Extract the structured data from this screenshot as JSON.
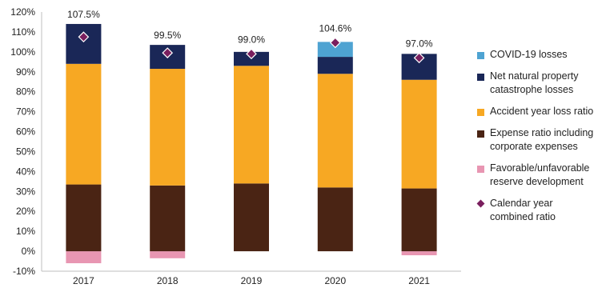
{
  "chart_data": {
    "type": "bar",
    "stacked": true,
    "categories": [
      "2017",
      "2018",
      "2019",
      "2020",
      "2021"
    ],
    "series": [
      {
        "name": "Favorable/unfavorable\nreserve development",
        "color": "#e896b2",
        "values": [
          -6,
          -3.5,
          0,
          0,
          -2
        ]
      },
      {
        "name": "Expense ratio including\ncorporate expenses",
        "color": "#4a2414",
        "values": [
          33.5,
          33,
          34,
          32,
          31.5
        ]
      },
      {
        "name": "Accident year loss ratio",
        "color": "#f7a823",
        "values": [
          60.5,
          58.5,
          59,
          57,
          54.5
        ]
      },
      {
        "name": "Net natural property\ncatastrophe losses",
        "color": "#1a2757",
        "values": [
          20,
          12,
          7,
          8.5,
          13
        ]
      },
      {
        "name": "COVID-19 losses",
        "color": "#4ea3d2",
        "values": [
          0,
          0,
          0,
          7.5,
          0
        ]
      }
    ],
    "line_series": {
      "name": "Calendar year\ncombined ratio",
      "color": "#7a1f5e",
      "marker": "diamond",
      "values": [
        107.5,
        99.5,
        99.0,
        104.6,
        97.0
      ]
    },
    "data_labels": [
      "107.5%",
      "99.5%",
      "99.0%",
      "104.6%",
      "97.0%"
    ],
    "ylim": [
      -10,
      120
    ],
    "yticks": [
      -10,
      0,
      10,
      20,
      30,
      40,
      50,
      60,
      70,
      80,
      90,
      100,
      110,
      120
    ],
    "ytick_labels": [
      "-10%",
      "0%",
      "10%",
      "20%",
      "30%",
      "40%",
      "50%",
      "60%",
      "70%",
      "80%",
      "90%",
      "100%",
      "110%",
      "120%"
    ],
    "grid": false,
    "legend_position": "right",
    "legend_order": [
      4,
      3,
      2,
      1,
      0,
      "line"
    ]
  }
}
